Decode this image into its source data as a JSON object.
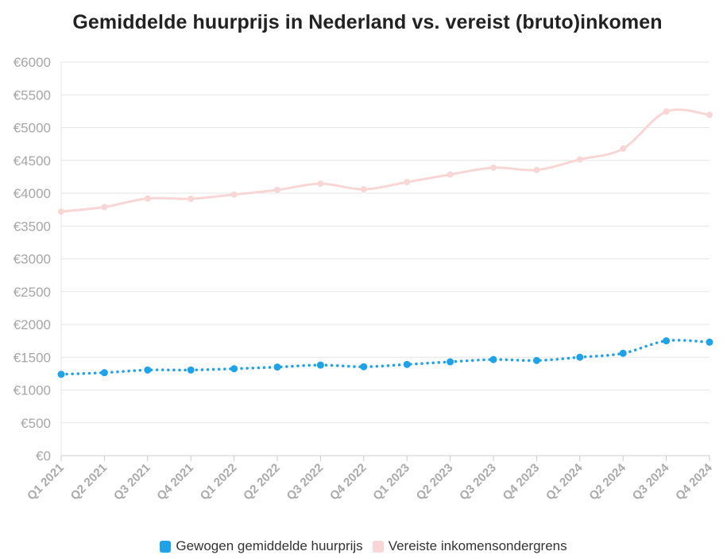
{
  "chart_data": {
    "type": "line",
    "title": "Gemiddelde huurprijs in Nederland vs. vereist (bruto)inkomen",
    "xlabel": "",
    "ylabel": "",
    "categories": [
      "Q1 2021",
      "Q2 2021",
      "Q3 2021",
      "Q4 2021",
      "Q1 2022",
      "Q2 2022",
      "Q3 2022",
      "Q4 2022",
      "Q1 2023",
      "Q2 2023",
      "Q3 2023",
      "Q4 2023",
      "Q1 2024",
      "Q2 2024",
      "Q3 2024",
      "Q4 2024"
    ],
    "y_ticks": [
      "€0",
      "€500",
      "€1000",
      "€1500",
      "€2000",
      "€2500",
      "€3000",
      "€3500",
      "€4000",
      "€4500",
      "€5000",
      "€5500",
      "€6000"
    ],
    "ylim": [
      0,
      6000
    ],
    "grid": true,
    "legend_position": "bottom",
    "series": [
      {
        "name": "Gewogen gemiddelde huurprijs",
        "color": "#1fa2e8",
        "style": "dotted",
        "values": [
          1240,
          1265,
          1305,
          1305,
          1325,
          1350,
          1380,
          1355,
          1390,
          1430,
          1465,
          1450,
          1500,
          1560,
          1750,
          1730
        ]
      },
      {
        "name": "Vereiste inkomensondergrens",
        "color": "#f9d6d6",
        "style": "solid",
        "values": [
          3720,
          3790,
          3920,
          3915,
          3980,
          4050,
          4145,
          4060,
          4170,
          4285,
          4390,
          4355,
          4515,
          4680,
          5245,
          5195
        ]
      }
    ]
  }
}
